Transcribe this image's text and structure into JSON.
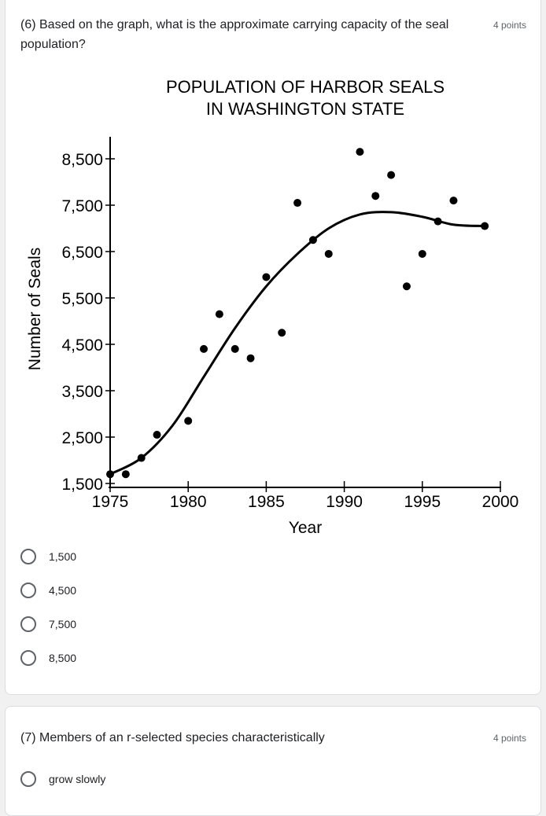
{
  "question6": {
    "text": "(6) Based on the graph, what is the approximate carrying capacity of the seal population?",
    "points": "4 points",
    "options": [
      "1,500",
      "4,500",
      "7,500",
      "8,500"
    ]
  },
  "question7": {
    "text": "(7) Members of an r-selected species characteristically",
    "points": "4 points",
    "options": [
      "grow slowly"
    ]
  },
  "chart_data": {
    "type": "scatter",
    "title": "POPULATION OF HARBOR SEALS\nIN WASHINGTON STATE",
    "title_lines": [
      "POPULATION OF HARBOR SEALS",
      "IN WASHINGTON STATE"
    ],
    "xlabel": "Year",
    "ylabel": "Number of Seals",
    "xlim": [
      1975,
      2000
    ],
    "ylim": [
      1500,
      8500
    ],
    "x_ticks": [
      "1975",
      "1980",
      "1985",
      "1990",
      "1995",
      "2000"
    ],
    "y_ticks": [
      "1,500",
      "2,500",
      "3,500",
      "4,500",
      "5,500",
      "6,500",
      "7,500",
      "8,500"
    ],
    "grid": false,
    "points": [
      [
        1975,
        1700
      ],
      [
        1976,
        1700
      ],
      [
        1977,
        2050
      ],
      [
        1978,
        2550
      ],
      [
        1980,
        2850
      ],
      [
        1981,
        4400
      ],
      [
        1982,
        5150
      ],
      [
        1983,
        4400
      ],
      [
        1984,
        4200
      ],
      [
        1985,
        5950
      ],
      [
        1986,
        4750
      ],
      [
        1987,
        7550
      ],
      [
        1988,
        6750
      ],
      [
        1989,
        6450
      ],
      [
        1991,
        8650
      ],
      [
        1992,
        7700
      ],
      [
        1993,
        8150
      ],
      [
        1994,
        5750
      ],
      [
        1995,
        6450
      ],
      [
        1996,
        7150
      ],
      [
        1997,
        7600
      ],
      [
        1999,
        7050
      ]
    ],
    "trend_curve": [
      [
        1975,
        1700
      ],
      [
        1977,
        2050
      ],
      [
        1979,
        2750
      ],
      [
        1981,
        3800
      ],
      [
        1983,
        4850
      ],
      [
        1985,
        5750
      ],
      [
        1987,
        6450
      ],
      [
        1989,
        7000
      ],
      [
        1991,
        7300
      ],
      [
        1993,
        7350
      ],
      [
        1995,
        7250
      ],
      [
        1997,
        7080
      ],
      [
        1999,
        7050
      ]
    ]
  }
}
